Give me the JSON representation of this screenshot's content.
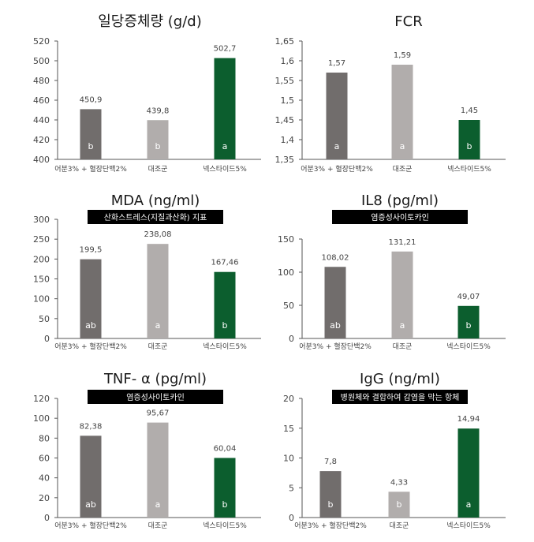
{
  "colors": {
    "dark_gray": "#716d6c",
    "light_gray": "#b1adac",
    "green": "#0c5e2e",
    "axis": "#555555",
    "label_box": "#000000"
  },
  "chart_data": [
    {
      "type": "bar",
      "title": "일당증체량 (g/d)",
      "subtitle": "",
      "categories": [
        "어분3% + 혈장단백2%",
        "대조군",
        "넥스타이드5%"
      ],
      "values": [
        450.9,
        439.8,
        502.7
      ],
      "value_labels": [
        "450,9",
        "439,8",
        "502,7"
      ],
      "significance": [
        "b",
        "b",
        "a"
      ],
      "bar_colors": [
        "#716d6c",
        "#b1adac",
        "#0c5e2e"
      ],
      "ylim": [
        400,
        520
      ],
      "yticks": [
        400,
        420,
        440,
        460,
        480,
        500,
        520
      ],
      "ytick_labels": [
        "400",
        "420",
        "440",
        "460",
        "480",
        "500",
        "520"
      ],
      "grid": false
    },
    {
      "type": "bar",
      "title": "FCR",
      "subtitle": "",
      "categories": [
        "어분3% + 혈장단백2%",
        "대조군",
        "넥스타이드5%"
      ],
      "values": [
        1.57,
        1.59,
        1.45
      ],
      "value_labels": [
        "1,57",
        "1,59",
        "1,45"
      ],
      "significance": [
        "a",
        "a",
        "b"
      ],
      "bar_colors": [
        "#716d6c",
        "#b1adac",
        "#0c5e2e"
      ],
      "ylim": [
        1.35,
        1.65
      ],
      "yticks": [
        1.35,
        1.4,
        1.45,
        1.5,
        1.55,
        1.6,
        1.65
      ],
      "ytick_labels": [
        "1,35",
        "1,4",
        "1,45",
        "1,5",
        "1,55",
        "1,6",
        "1,65"
      ],
      "grid": false
    },
    {
      "type": "bar",
      "title": "MDA (ng/ml)",
      "subtitle": "산화스트레스(지질과산화) 지표",
      "categories": [
        "어분3% + 혈장단백2%",
        "대조군",
        "넥스타이드5%"
      ],
      "values": [
        199.5,
        238.08,
        167.46
      ],
      "value_labels": [
        "199,5",
        "238,08",
        "167,46"
      ],
      "significance": [
        "ab",
        "a",
        "b"
      ],
      "bar_colors": [
        "#716d6c",
        "#b1adac",
        "#0c5e2e"
      ],
      "ylim": [
        0,
        300
      ],
      "yticks": [
        0,
        50,
        100,
        150,
        200,
        250,
        300
      ],
      "ytick_labels": [
        "0",
        "50",
        "100",
        "150",
        "200",
        "250",
        "300"
      ],
      "grid": false
    },
    {
      "type": "bar",
      "title": "IL8 (pg/ml)",
      "subtitle": "염증성사이토카인",
      "categories": [
        "어분3% + 혈장단백2%",
        "대조군",
        "넥스타이드5%"
      ],
      "values": [
        108.02,
        131.21,
        49.07
      ],
      "value_labels": [
        "108,02",
        "131,21",
        "49,07"
      ],
      "significance": [
        "ab",
        "a",
        "b"
      ],
      "bar_colors": [
        "#716d6c",
        "#b1adac",
        "#0c5e2e"
      ],
      "ylim": [
        0,
        150
      ],
      "yticks": [
        0,
        50,
        100,
        150
      ],
      "ytick_labels": [
        "0",
        "50",
        "100",
        "150"
      ],
      "grid": false
    },
    {
      "type": "bar",
      "title": "TNF- α (pg/ml)",
      "subtitle": "염증성사이토카인",
      "categories": [
        "어분3% + 혈장단백2%",
        "대조군",
        "넥스타이드5%"
      ],
      "values": [
        82.38,
        95.67,
        60.04
      ],
      "value_labels": [
        "82,38",
        "95,67",
        "60,04"
      ],
      "significance": [
        "ab",
        "a",
        "b"
      ],
      "bar_colors": [
        "#716d6c",
        "#b1adac",
        "#0c5e2e"
      ],
      "ylim": [
        0,
        120
      ],
      "yticks": [
        0,
        20,
        40,
        60,
        80,
        100,
        120
      ],
      "ytick_labels": [
        "0",
        "20",
        "40",
        "60",
        "80",
        "100",
        "120"
      ],
      "grid": false
    },
    {
      "type": "bar",
      "title": "IgG (ng/ml)",
      "subtitle": "병원체와 결합하여 감염을 막는 항체",
      "categories": [
        "어분3% + 혈장단백2%",
        "대조군",
        "넥스타이드5%"
      ],
      "values": [
        7.8,
        4.33,
        14.94
      ],
      "value_labels": [
        "7,8",
        "4,33",
        "14,94"
      ],
      "significance": [
        "b",
        "b",
        "a"
      ],
      "bar_colors": [
        "#716d6c",
        "#b1adac",
        "#0c5e2e"
      ],
      "ylim": [
        0,
        20
      ],
      "yticks": [
        0,
        5,
        10,
        15,
        20
      ],
      "ytick_labels": [
        "0",
        "5",
        "10",
        "15",
        "20"
      ],
      "grid": false
    }
  ]
}
